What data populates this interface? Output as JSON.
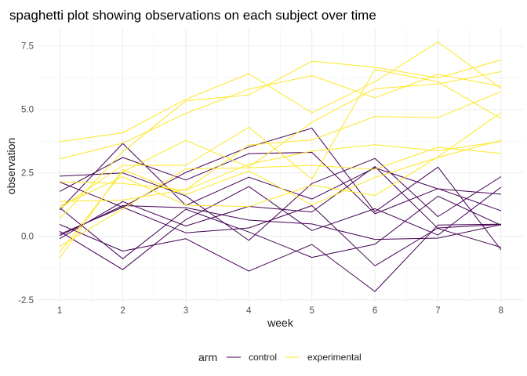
{
  "chart_data": {
    "type": "line",
    "title": "spaghetti plot showing observations on each subject over time",
    "xlabel": "week",
    "ylabel": "observation",
    "x": [
      1,
      2,
      3,
      4,
      5,
      6,
      7,
      8
    ],
    "x_ticks": [
      "1",
      "2",
      "3",
      "4",
      "5",
      "6",
      "7",
      "8"
    ],
    "y_ticks": [
      {
        "value": -2.5,
        "label": "-2.5"
      },
      {
        "value": 0,
        "label": "0.0"
      },
      {
        "value": 2.5,
        "label": "2.5"
      },
      {
        "value": 5,
        "label": "5.0"
      },
      {
        "value": 7.5,
        "label": "7.5"
      }
    ],
    "xlim": [
      0.65,
      8.35
    ],
    "ylim": [
      -2.6,
      8.2
    ],
    "grid": true,
    "legend": {
      "title": "arm",
      "position": "bottom",
      "entries": [
        {
          "label": "control",
          "color": "#440154"
        },
        {
          "label": "experimental",
          "color": "#FDE725"
        }
      ]
    },
    "series": [
      {
        "group": "control",
        "color": "#440154",
        "values": [
          0.2,
          -1.31,
          0.66,
          1.96,
          0.23,
          1.09,
          0.05,
          1.94
        ]
      },
      {
        "group": "control",
        "color": "#440154",
        "values": [
          1.13,
          -0.88,
          1.07,
          0.17,
          -0.83,
          -0.31,
          1.58,
          0.44
        ]
      },
      {
        "group": "control",
        "color": "#440154",
        "values": [
          1.77,
          3.11,
          2.22,
          3.26,
          3.31,
          0.89,
          1.88,
          1.01
        ]
      },
      {
        "group": "control",
        "color": "#440154",
        "values": [
          1.04,
          3.66,
          1.22,
          2.33,
          1.47,
          2.7,
          1.87,
          1.66
        ]
      },
      {
        "group": "control",
        "color": "#440154",
        "values": [
          0.47,
          -0.58,
          -0.09,
          -1.37,
          -0.32,
          -2.17,
          0.45,
          0.48
        ]
      },
      {
        "group": "control",
        "color": "#440154",
        "values": [
          2.37,
          2.5,
          1.59,
          -0.16,
          2.08,
          3.07,
          0.78,
          2.35
        ]
      },
      {
        "group": "control",
        "color": "#440154",
        "values": [
          0.03,
          1.21,
          1.13,
          0.64,
          0.49,
          -0.12,
          -0.07,
          0.46
        ]
      },
      {
        "group": "control",
        "color": "#440154",
        "values": [
          -0.09,
          1.37,
          0.41,
          1.18,
          0.96,
          2.75,
          0.31,
          -0.43
        ]
      },
      {
        "group": "control",
        "color": "#440154",
        "values": [
          0.08,
          1.15,
          2.52,
          3.52,
          4.26,
          0.97,
          2.73,
          -0.53
        ]
      },
      {
        "group": "control",
        "color": "#440154",
        "values": [
          2.14,
          1.15,
          0.14,
          0.33,
          1.21,
          -1.16,
          0.33,
          0.47
        ]
      },
      {
        "group": "experimental",
        "color": "#FDE725",
        "values": [
          3.05,
          3.67,
          4.84,
          5.8,
          6.33,
          5.46,
          6.38,
          5.91
        ]
      },
      {
        "group": "experimental",
        "color": "#FDE725",
        "values": [
          -0.84,
          2.63,
          1.64,
          2.58,
          1.24,
          2.32,
          3.11,
          3.78
        ]
      },
      {
        "group": "experimental",
        "color": "#FDE725",
        "values": [
          2.15,
          2.08,
          1.82,
          2.84,
          3.36,
          3.61,
          3.37,
          3.74
        ]
      },
      {
        "group": "experimental",
        "color": "#FDE725",
        "values": [
          -0.62,
          2.54,
          3.78,
          2.73,
          4.49,
          5.82,
          6.0,
          6.49
        ]
      },
      {
        "group": "experimental",
        "color": "#FDE725",
        "values": [
          0.7,
          3.33,
          5.34,
          5.57,
          6.9,
          6.66,
          6.24,
          6.95
        ]
      },
      {
        "group": "experimental",
        "color": "#FDE725",
        "values": [
          3.73,
          4.08,
          5.4,
          6.41,
          4.87,
          6.09,
          7.66,
          5.83
        ]
      },
      {
        "group": "experimental",
        "color": "#FDE725",
        "values": [
          1.18,
          2.35,
          1.23,
          1.17,
          2.02,
          1.61,
          3.13,
          4.88
        ]
      },
      {
        "group": "experimental",
        "color": "#FDE725",
        "values": [
          1.37,
          1.43,
          1.84,
          3.6,
          3.8,
          4.72,
          4.68,
          5.7
        ]
      },
      {
        "group": "experimental",
        "color": "#FDE725",
        "values": [
          -0.4,
          1.08,
          2.66,
          2.7,
          2.8,
          2.64,
          3.51,
          3.27
        ]
      },
      {
        "group": "experimental",
        "color": "#FDE725",
        "values": [
          1.09,
          2.8,
          2.8,
          4.3,
          2.25,
          6.57,
          6.09,
          4.64
        ]
      }
    ]
  }
}
